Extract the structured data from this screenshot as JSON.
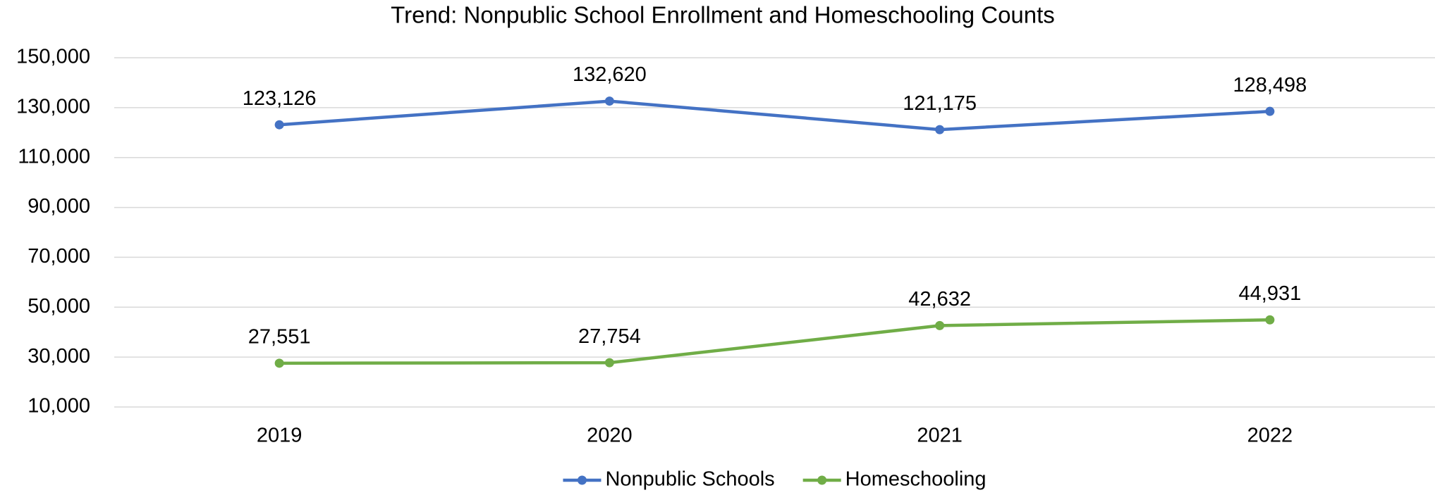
{
  "chart_data": {
    "type": "line",
    "title": "Trend: Nonpublic School Enrollment and Homeschooling Counts",
    "categories": [
      "2019",
      "2020",
      "2021",
      "2022"
    ],
    "series": [
      {
        "name": "Nonpublic Schools",
        "color": "#4472c4",
        "values": [
          123126,
          132620,
          121175,
          128498
        ],
        "value_labels": [
          "123,126",
          "132,620",
          "121,175",
          "128,498"
        ]
      },
      {
        "name": "Homeschooling",
        "color": "#70ad47",
        "values": [
          27551,
          27754,
          42632,
          44931
        ],
        "value_labels": [
          "27,551",
          "27,754",
          "42,632",
          "44,931"
        ]
      }
    ],
    "ylim": [
      10000,
      150000
    ],
    "yticks": [
      {
        "value": 10000,
        "label": "10,000"
      },
      {
        "value": 30000,
        "label": "30,000"
      },
      {
        "value": 50000,
        "label": "50,000"
      },
      {
        "value": 70000,
        "label": "70,000"
      },
      {
        "value": 90000,
        "label": "90,000"
      },
      {
        "value": 110000,
        "label": "110,000"
      },
      {
        "value": 130000,
        "label": "130,000"
      },
      {
        "value": 150000,
        "label": "150,000"
      }
    ],
    "grid": true,
    "legend": "bottom"
  }
}
